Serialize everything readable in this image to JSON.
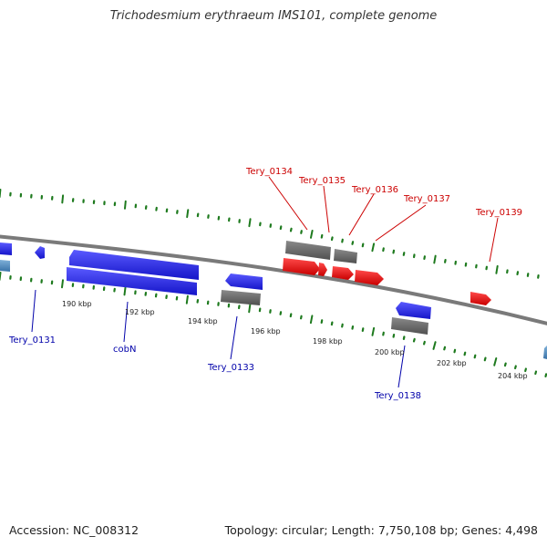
{
  "title": "Trichodesmium erythraeum IMS101, complete genome",
  "footer": {
    "accession": "Accession: NC_008312",
    "summary": "Topology: circular; Length: 7,750,108 bp; Genes: 4,498"
  },
  "colors": {
    "forward_gene": "#2020e8",
    "reverse_gene_red": "#e81010",
    "rna_gray": "#6b6b6b",
    "label_red": "#cc0000",
    "label_blue": "#0000aa",
    "tick_green": "#1e7a1e",
    "backbone": "#808080"
  },
  "scale_labels": [
    "190 kbp",
    "192 kbp",
    "194 kbp",
    "196 kbp",
    "198 kbp",
    "200 kbp",
    "202 kbp",
    "204 kbp"
  ],
  "gene_labels_top": [
    "Tery_0134",
    "Tery_0135",
    "Tery_0136",
    "Tery_0137",
    "Tery_0139"
  ],
  "gene_labels_bottom": [
    "Tery_0131",
    "cobN",
    "Tery_0133",
    "Tery_0138"
  ]
}
